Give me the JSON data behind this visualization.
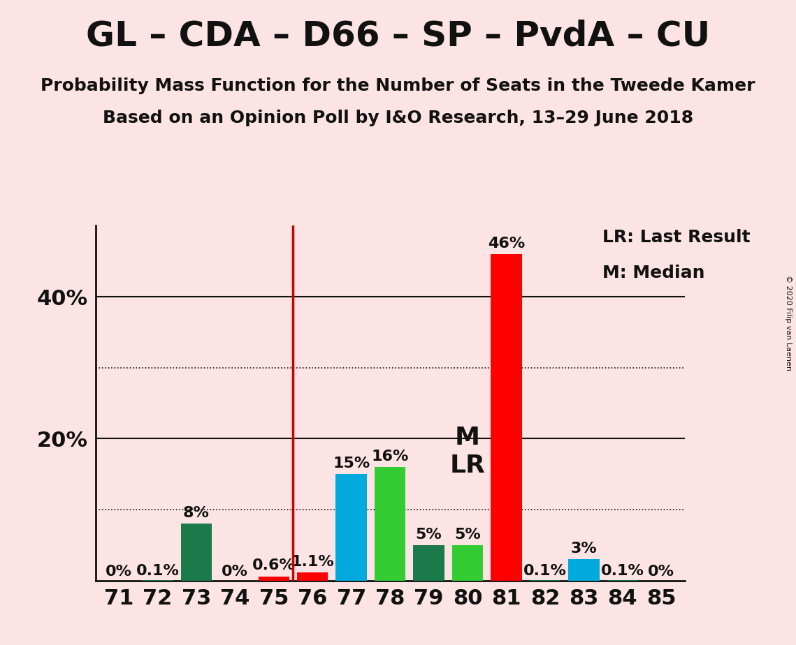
{
  "title": "GL – CDA – D66 – SP – PvdA – CU",
  "subtitle1": "Probability Mass Function for the Number of Seats in the Tweede Kamer",
  "subtitle2": "Based on an Opinion Poll by I&O Research, 13–29 June 2018",
  "copyright": "© 2020 Filip van Laenen",
  "background_color": "#fce4e4",
  "seats": [
    71,
    72,
    73,
    74,
    75,
    76,
    77,
    78,
    79,
    80,
    81,
    82,
    83,
    84,
    85
  ],
  "values": [
    0.0,
    0.1,
    8.0,
    0.0,
    0.6,
    1.1,
    15.0,
    16.0,
    5.0,
    5.0,
    46.0,
    0.1,
    3.0,
    0.1,
    0.0
  ],
  "labels": [
    "0%",
    "0.1%",
    "8%",
    "0%",
    "0.6%",
    "1.1%",
    "15%",
    "16%",
    "5%",
    "5%",
    "46%",
    "0.1%",
    "3%",
    "0.1%",
    "0%"
  ],
  "bar_colors": [
    "#1b7a4a",
    "#1b7a4a",
    "#1b7a4a",
    "#1b7a4a",
    "#ff0000",
    "#ff0000",
    "#00aadd",
    "#33cc33",
    "#1b7a4a",
    "#33cc33",
    "#ff0000",
    "#1b7a4a",
    "#00aadd",
    "#1b7a4a",
    "#1b7a4a"
  ],
  "vertical_line_x": 75.5,
  "ylim_max": 50,
  "solid_lines": [
    20,
    40
  ],
  "dotted_lines": [
    10,
    30
  ],
  "ytick_positions": [
    20,
    40
  ],
  "ytick_labels": [
    "20%",
    "40%"
  ],
  "title_fontsize": 36,
  "subtitle_fontsize": 18,
  "bar_label_fontsize": 16,
  "tick_fontsize": 22,
  "ylabel_fontsize": 22,
  "legend_fontsize": 18,
  "ml_fontsize": 26,
  "copyright_fontsize": 8
}
